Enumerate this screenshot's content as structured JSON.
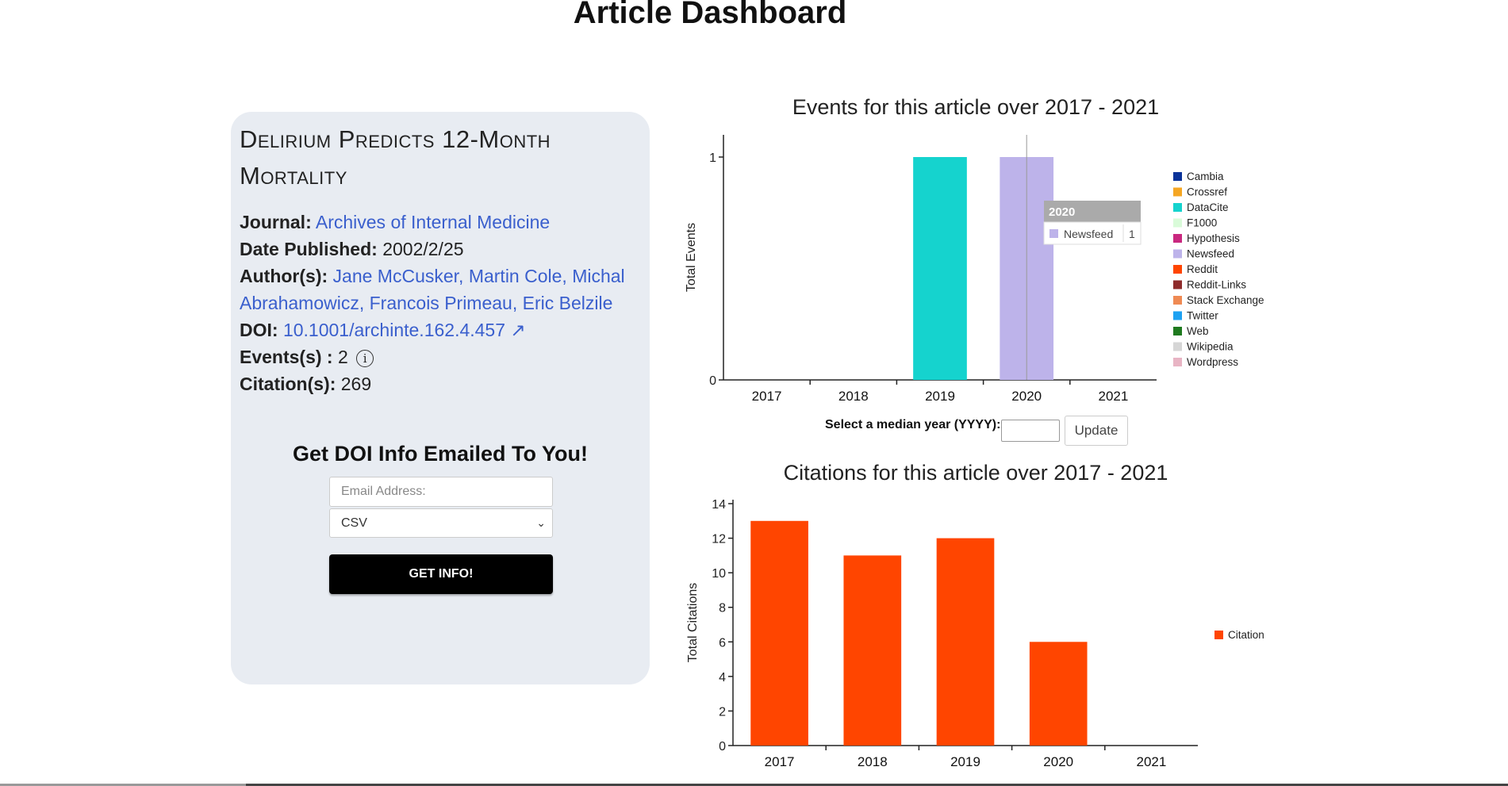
{
  "page": {
    "title": "Article Dashboard"
  },
  "article": {
    "title": "Delirium Predicts 12-Month Mortality",
    "journal_label": "Journal:",
    "journal": "Archives of Internal Medicine",
    "date_label": "Date Published:",
    "date": "2002/2/25",
    "authors_label": "Author(s):",
    "authors": "Jane McCusker, Martin Cole, Michal Abrahamowicz, Francois Primeau, Eric Belzile",
    "doi_label": "DOI:",
    "doi": "10.1001/archinte.162.4.457 ↗",
    "events_label": "Events(s) :",
    "events": "2",
    "citations_label": "Citation(s):",
    "citations": "269",
    "info_icon": "i"
  },
  "email_form": {
    "heading": "Get DOI Info Emailed To You!",
    "email_placeholder": "Email Address:",
    "format_selected": "CSV",
    "submit_label": "GET INFO!"
  },
  "median_form": {
    "label": "Select a median year (YYYY):",
    "update_label": "Update"
  },
  "colors": {
    "accent_link": "#3a5fcd",
    "card_bg": "#e8ecf2"
  },
  "chart_data": [
    {
      "type": "bar",
      "title": "Events for this article over 2017 - 2021",
      "ylabel": "Total Events",
      "categories": [
        "2017",
        "2018",
        "2019",
        "2020",
        "2021"
      ],
      "yticks": [
        "0",
        "1"
      ],
      "ylim": [
        0,
        1
      ],
      "series": [
        {
          "name": "Cambia",
          "color": "#0a3299",
          "values": [
            0,
            0,
            0,
            0,
            0
          ]
        },
        {
          "name": "Crossref",
          "color": "#f5a623",
          "values": [
            0,
            0,
            0,
            0,
            0
          ]
        },
        {
          "name": "DataCite",
          "color": "#15d3ce",
          "values": [
            0,
            0,
            1,
            0,
            0
          ]
        },
        {
          "name": "F1000",
          "color": "#d9fbd9",
          "values": [
            0,
            0,
            0,
            0,
            0
          ]
        },
        {
          "name": "Hypothesis",
          "color": "#c9287f",
          "values": [
            0,
            0,
            0,
            0,
            0
          ]
        },
        {
          "name": "Newsfeed",
          "color": "#bdb3ea",
          "values": [
            0,
            0,
            0,
            1,
            0
          ]
        },
        {
          "name": "Reddit",
          "color": "#ff4500",
          "values": [
            0,
            0,
            0,
            0,
            0
          ]
        },
        {
          "name": "Reddit-Links",
          "color": "#8e2b2b",
          "values": [
            0,
            0,
            0,
            0,
            0
          ]
        },
        {
          "name": "Stack Exchange",
          "color": "#ef8a53",
          "values": [
            0,
            0,
            0,
            0,
            0
          ]
        },
        {
          "name": "Twitter",
          "color": "#1da1f2",
          "values": [
            0,
            0,
            0,
            0,
            0
          ]
        },
        {
          "name": "Web",
          "color": "#1f7a1f",
          "values": [
            0,
            0,
            0,
            0,
            0
          ]
        },
        {
          "name": "Wikipedia",
          "color": "#d6d6d6",
          "values": [
            0,
            0,
            0,
            0,
            0
          ]
        },
        {
          "name": "Wordpress",
          "color": "#e8b4c4",
          "values": [
            0,
            0,
            0,
            0,
            0
          ]
        }
      ],
      "legend": "right",
      "tooltip": {
        "header": "2020",
        "series": "Newsfeed",
        "value": "1"
      }
    },
    {
      "type": "bar",
      "title": "Citations for this article over 2017 - 2021",
      "ylabel": "Total Citations",
      "categories": [
        "2017",
        "2018",
        "2019",
        "2020",
        "2021"
      ],
      "yticks": [
        "0",
        "2",
        "4",
        "6",
        "8",
        "10",
        "12",
        "14"
      ],
      "ylim": [
        0,
        14
      ],
      "series": [
        {
          "name": "Citation",
          "color": "#ff4500",
          "values": [
            13,
            11,
            12,
            6,
            0
          ]
        }
      ],
      "legend": "right"
    }
  ]
}
